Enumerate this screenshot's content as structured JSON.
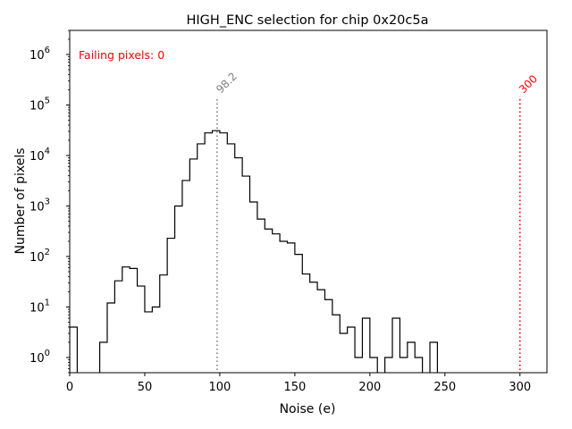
{
  "chart_data": {
    "type": "histogram",
    "title": "HIGH_ENC selection for chip 0x20c5a",
    "xlabel": "Noise (e)",
    "ylabel": "Number of pixels",
    "xlim": [
      0,
      318
    ],
    "ylim": [
      0.5,
      3000000
    ],
    "yscale": "log",
    "grid": false,
    "x_ticks": [
      "0",
      "50",
      "100",
      "150",
      "200",
      "250",
      "300"
    ],
    "y_ticks": [
      {
        "value": 1,
        "base": "10",
        "exp": "0"
      },
      {
        "value": 10,
        "base": "10",
        "exp": "1"
      },
      {
        "value": 100,
        "base": "10",
        "exp": "2"
      },
      {
        "value": 1000,
        "base": "10",
        "exp": "3"
      },
      {
        "value": 10000,
        "base": "10",
        "exp": "4"
      },
      {
        "value": 100000,
        "base": "10",
        "exp": "5"
      },
      {
        "value": 1000000,
        "base": "10",
        "exp": "6"
      }
    ],
    "bin_width": 5,
    "bin_start": 0,
    "counts": [
      4,
      0,
      0,
      0,
      2,
      12,
      33,
      62,
      58,
      26,
      8,
      10,
      43,
      230,
      1000,
      3200,
      8500,
      17000,
      28000,
      31000,
      28000,
      17000,
      9000,
      3900,
      1200,
      550,
      350,
      280,
      200,
      185,
      110,
      45,
      31,
      22,
      14,
      7,
      3,
      4,
      1,
      6,
      1,
      0,
      1,
      6,
      1,
      2,
      1,
      0,
      2,
      0
    ],
    "annotations": [
      {
        "id": "mean",
        "x": 98.2,
        "label": "98.2",
        "color": "#808080"
      },
      {
        "id": "threshold",
        "x": 300,
        "label": "300",
        "color": "#ff0000"
      }
    ],
    "failing_text": "Failing pixels: 0",
    "failing_color": "#ff0000",
    "line_color": "#000000"
  }
}
